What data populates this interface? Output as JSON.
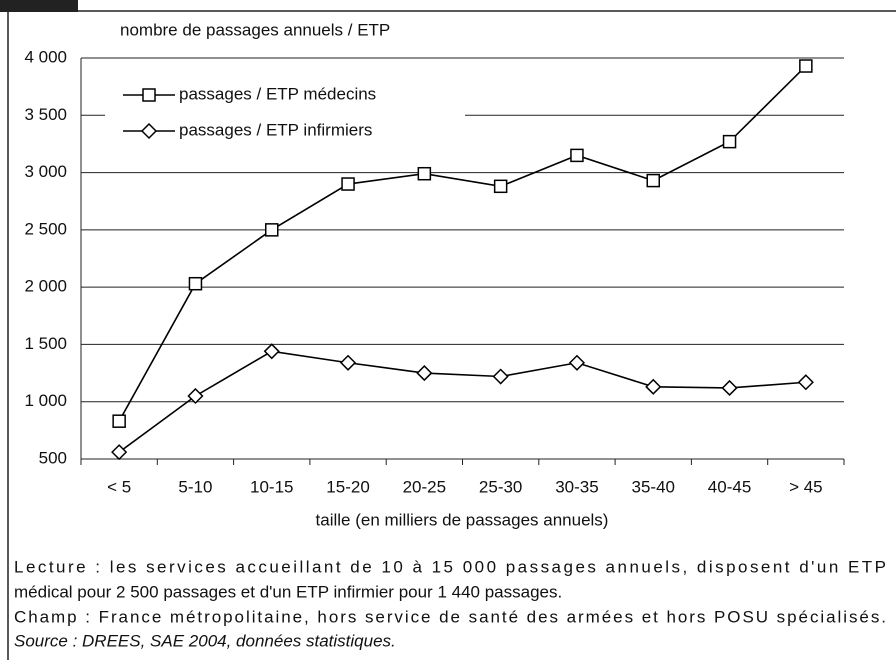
{
  "chart_data": {
    "type": "line",
    "y_label": "nombre de passages annuels / ETP",
    "x_label": "taille (en milliers de passages annuels)",
    "categories": [
      "< 5",
      "5-10",
      "10-15",
      "15-20",
      "20-25",
      "25-30",
      "30-35",
      "35-40",
      "40-45",
      "> 45"
    ],
    "series": [
      {
        "name": "passages / ETP médecins",
        "color": "#000000",
        "marker": "square",
        "values": [
          830,
          2030,
          2500,
          2900,
          2990,
          2880,
          3150,
          2930,
          3270,
          3930
        ]
      },
      {
        "name": "passages / ETP infirmiers",
        "color": "#000000",
        "marker": "diamond",
        "values": [
          560,
          1050,
          1440,
          1340,
          1250,
          1220,
          1340,
          1130,
          1120,
          1170
        ]
      }
    ],
    "ylim": [
      500,
      4000
    ],
    "yticks": [
      {
        "value": 500,
        "label": "500"
      },
      {
        "value": 1000,
        "label": "1 000"
      },
      {
        "value": 1500,
        "label": "1 500"
      },
      {
        "value": 2000,
        "label": "2 000"
      },
      {
        "value": 2500,
        "label": "2 500"
      },
      {
        "value": 3000,
        "label": "3 000"
      },
      {
        "value": 3500,
        "label": "3 500"
      },
      {
        "value": 4000,
        "label": "4 000"
      }
    ],
    "grid": true,
    "legend": "upper left",
    "notes": [
      "Lecture : les services accueillant de 10 à 15 000 passages annuels, disposent d'un ETP",
      "médical pour 2 500 passages et d'un ETP infirmier pour 1 440 passages.",
      "Champ : France métropolitaine, hors service de santé des armées et hors POSU spécialisés."
    ],
    "source": "Source : DREES, SAE 2004, données statistiques."
  }
}
